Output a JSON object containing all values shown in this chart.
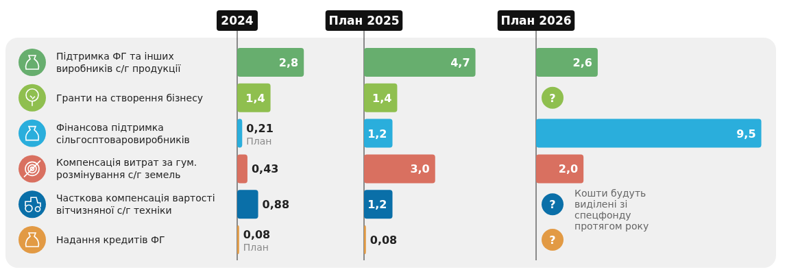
{
  "chart_data": [
    {
      "type": "bar",
      "orientation": "horizontal",
      "title": "2024",
      "categories": [
        "Підтримка ФГ та інших виробників с/г продукції",
        "Гранти на створення бізнесу",
        "Фінансова підтримка сільгосптоваровиробників",
        "Компенсація витрат за гум. розмінування с/г земель",
        "Часткова компенсація вартості вітчизняної с/г техніки",
        "Надання кредитів ФГ"
      ],
      "values": [
        2.8,
        1.4,
        0.21,
        0.43,
        0.88,
        0.08
      ],
      "colors": [
        "#67ae6e",
        "#8fbf4f",
        "#2aaedc",
        "#d97060",
        "#0a6fa8",
        "#e29a44"
      ],
      "value_labels": [
        "2,8",
        "1,4",
        "0,21",
        "0,43",
        "0,88",
        "0,08"
      ],
      "xlim": [
        0,
        5.3
      ],
      "tick_labels": "y",
      "annotations": [
        {
          "text": "План",
          "x": 0.21,
          "y": "Фінансова підтримка сільгосптоваровиробників"
        },
        {
          "text": "План",
          "x": 0.08,
          "y": "Надання кредитів ФГ"
        }
      ]
    },
    {
      "type": "bar",
      "orientation": "horizontal",
      "title": "План 2025",
      "categories": [
        "Підтримка ФГ та інших виробників с/г продукції",
        "Гранти на створення бізнесу",
        "Фінансова підтримка сільгосптоваровиробників",
        "Компенсація витрат за гум. розмінування с/г земель",
        "Часткова компенсація вартості вітчизняної с/г техніки",
        "Надання кредитів ФГ"
      ],
      "values": [
        4.7,
        1.4,
        1.2,
        3.0,
        1.2,
        0.08
      ],
      "colors": [
        "#67ae6e",
        "#8fbf4f",
        "#2aaedc",
        "#d97060",
        "#0a6fa8",
        "#e29a44"
      ],
      "value_labels": [
        "4,7",
        "1,4",
        "1,2",
        "3,0",
        "1,2",
        "0,08"
      ],
      "xlim": [
        0,
        7.2
      ],
      "tick_labels": false
    },
    {
      "type": "bar",
      "orientation": "horizontal",
      "title": "План 2026",
      "categories": [
        "Підтримка ФГ та інших виробників с/г продукції",
        "Гранти на створення бізнесу",
        "Фінансова підтримка сільгосптоваровиробників",
        "Компенсація витрат за гум. розмінування с/г земель",
        "Часткова компенсація вартості вітчизняної с/г техніки",
        "Надання кредитів ФГ"
      ],
      "values": [
        2.6,
        null,
        9.5,
        2.0,
        null,
        null
      ],
      "colors": [
        "#67ae6e",
        "#8fbf4f",
        "#2aaedc",
        "#d97060",
        "#0a6fa8",
        "#e29a44"
      ],
      "value_labels": [
        "2,6",
        "?",
        "9,5",
        "2,0",
        "?",
        "?"
      ],
      "xlim": [
        0,
        9.6
      ],
      "tick_labels": false,
      "annotations": [
        "Кошти будуть виділені зі спецфонду протягом року"
      ]
    }
  ]
}
